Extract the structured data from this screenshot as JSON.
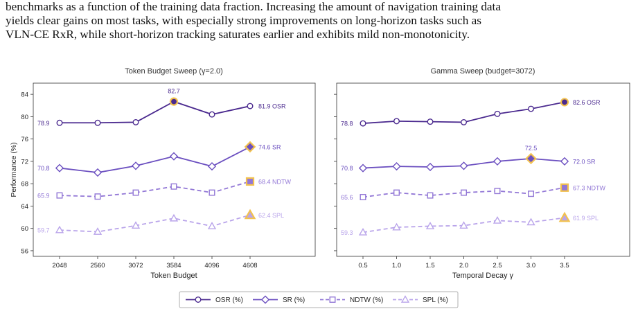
{
  "paragraph": {
    "lines": [
      "benchmarks as a function of the training data fraction. Increasing the amount of navigation training data",
      "yields clear gains on most tasks, with especially strong improvements on long-horizon tasks such as",
      "VLN-CE RxR, while short-horizon tracking saturates earlier and exhibits mild non-monotonicity."
    ]
  },
  "chart_data": [
    {
      "type": "line",
      "title": "Token Budget Sweep (γ=2.0)",
      "xlabel": "Token Budget",
      "ylabel": "Performance (%)",
      "x": [
        2048,
        2560,
        3072,
        3584,
        4096,
        4608
      ],
      "ylim": [
        55,
        86
      ],
      "yticks": [
        56,
        60,
        64,
        68,
        72,
        76,
        80,
        84
      ],
      "grid": false,
      "series": [
        {
          "name": "OSR",
          "values": [
            78.9,
            78.9,
            79.0,
            82.7,
            80.4,
            81.9
          ],
          "color": "#4b2a8f",
          "marker": "circle",
          "dash": "solid"
        },
        {
          "name": "SR",
          "values": [
            70.8,
            70.0,
            71.2,
            72.9,
            71.1,
            74.6
          ],
          "color": "#6b4fc0",
          "marker": "diamond",
          "dash": "solid"
        },
        {
          "name": "NDTW",
          "values": [
            65.9,
            65.7,
            66.4,
            67.5,
            66.4,
            68.4
          ],
          "color": "#9277d6",
          "marker": "square",
          "dash": "dashed"
        },
        {
          "name": "SPL",
          "values": [
            59.7,
            59.4,
            60.5,
            61.8,
            60.4,
            62.4
          ],
          "color": "#b9a4ea",
          "marker": "triangle",
          "dash": "dashed"
        }
      ],
      "annotations": {
        "start_labels": [
          "78.9",
          "70.8",
          "65.9",
          "59.7"
        ],
        "end_labels": [
          "81.9 OSR",
          "74.6 SR",
          "68.4 NDTW",
          "62.4 SPL"
        ],
        "peak_label": "82.7"
      }
    },
    {
      "type": "line",
      "title": "Gamma Sweep (budget=3072)",
      "xlabel": "Temporal Decay γ",
      "ylabel": "",
      "x": [
        0.5,
        1.0,
        1.5,
        2.0,
        2.5,
        3.0,
        3.5
      ],
      "xticklabels": [
        "0.5",
        "1.0",
        "1.5",
        "2.0",
        "2.5",
        "3.0",
        "3.5"
      ],
      "ylim": [
        55,
        86
      ],
      "grid": false,
      "series": [
        {
          "name": "OSR",
          "values": [
            78.8,
            79.2,
            79.1,
            79.0,
            80.5,
            81.4,
            82.6
          ],
          "color": "#4b2a8f",
          "marker": "circle",
          "dash": "solid"
        },
        {
          "name": "SR",
          "values": [
            70.8,
            71.1,
            71.0,
            71.2,
            72.0,
            72.5,
            72.0
          ],
          "color": "#6b4fc0",
          "marker": "diamond",
          "dash": "solid"
        },
        {
          "name": "NDTW",
          "values": [
            65.6,
            66.4,
            65.9,
            66.4,
            66.7,
            66.2,
            67.3
          ],
          "color": "#9277d6",
          "marker": "square",
          "dash": "dashed"
        },
        {
          "name": "SPL",
          "values": [
            59.3,
            60.2,
            60.4,
            60.5,
            61.4,
            61.1,
            61.9
          ],
          "color": "#b9a4ea",
          "marker": "triangle",
          "dash": "dashed"
        }
      ],
      "annotations": {
        "start_labels": [
          "78.8",
          "70.8",
          "65.6",
          "59.3"
        ],
        "end_labels": [
          "82.6 OSR",
          "72.0 SR",
          "67.3 NDTW",
          "61.9 SPL"
        ],
        "peak_label": "72.5"
      }
    }
  ],
  "legend": {
    "placement": "bottom-center",
    "items": [
      "OSR (%)",
      "SR (%)",
      "NDTW (%)",
      "SPL (%)"
    ]
  },
  "highlight_color": "#f2c14e"
}
